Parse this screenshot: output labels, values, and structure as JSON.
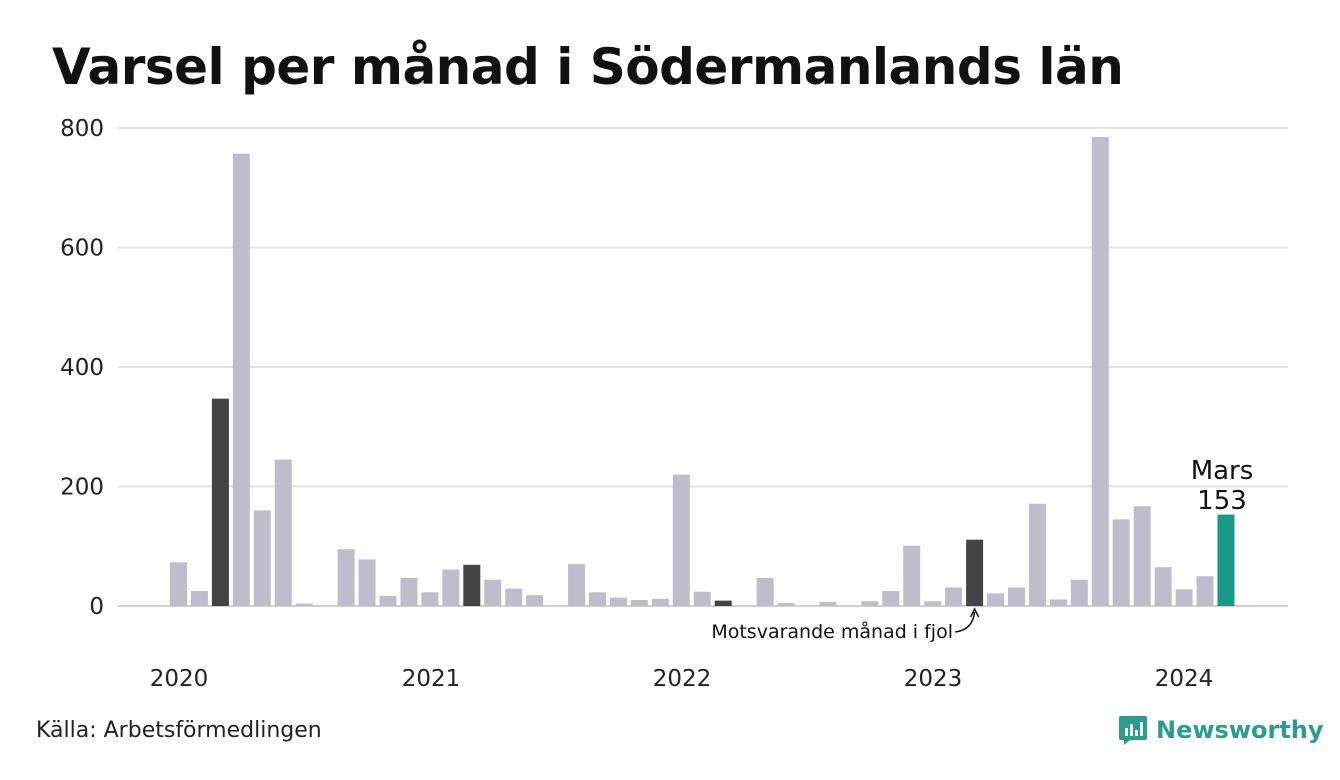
{
  "title": "Varsel per månad i Södermanlands län",
  "source": "Källa: Arbetsförmedlingen",
  "brand": {
    "name": "Newsworthy",
    "icon": "newsworthy-logo-icon",
    "color": "#2a9d8f"
  },
  "chart_data": {
    "type": "bar",
    "title": "Varsel per månad i Södermanlands län",
    "xlabel": "",
    "ylabel": "",
    "ylim": [
      0,
      800
    ],
    "yticks": [
      0,
      200,
      400,
      600,
      800
    ],
    "year_labels": [
      "2020",
      "2021",
      "2022",
      "2023",
      "2024"
    ],
    "grid": true,
    "legend": "none",
    "colors": {
      "default": "#bfbdcc",
      "same_month_previous_years": "#444444",
      "current": "#1a9a8a"
    },
    "series": [
      {
        "values": [
          73,
          25,
          347,
          757,
          160,
          245,
          4,
          0,
          95,
          78,
          17,
          47,
          23,
          61,
          69,
          44,
          29,
          18,
          0,
          70,
          23,
          14,
          10,
          12,
          220,
          24,
          9,
          0,
          47,
          5,
          0,
          7,
          0,
          8,
          25,
          101,
          8,
          31,
          111,
          21,
          31,
          171,
          11,
          44,
          785,
          145,
          167,
          65,
          28,
          50,
          153
        ]
      }
    ],
    "highlight_indices": [
      2,
      14,
      26,
      38
    ],
    "current_index": 50,
    "highlight_label": {
      "month": "Mars",
      "value": "153"
    },
    "annotation": {
      "text": "Motsvarande månad i fjol",
      "target_index": 38
    }
  }
}
